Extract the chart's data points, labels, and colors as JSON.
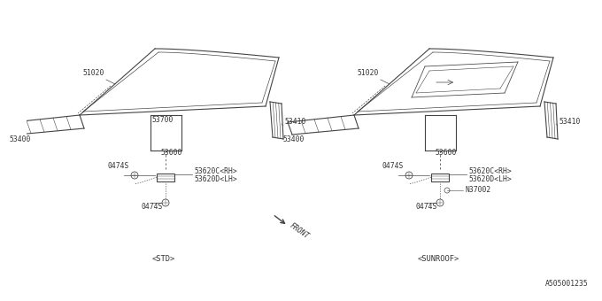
{
  "bg_color": "#ffffff",
  "line_color": "#444444",
  "text_color": "#333333",
  "title_bottom": "A505001235",
  "left_label": "<STD>",
  "right_label": "<SUNROOF>",
  "front_label": "FRONT",
  "parts_left": {
    "51020": "51020",
    "53410": "53410",
    "53400": "53400",
    "53700": "53700",
    "53600": "53600",
    "53620C": "53620C<RH>",
    "53620D": "53620D<LH>",
    "0474S_a": "0474S",
    "0474S_b": "0474S"
  },
  "parts_right": {
    "51020": "51020",
    "53410": "53410",
    "53400": "53400",
    "53600": "53600",
    "53620C": "53620C<RH>",
    "53620D": "53620D<LH>",
    "N37002": "N37002",
    "0474S_a": "0474S",
    "0474S_b": "0474S"
  }
}
